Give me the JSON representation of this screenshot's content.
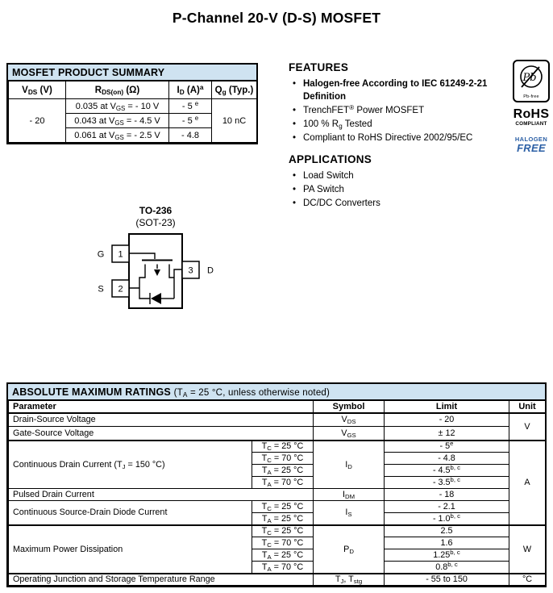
{
  "page_title": "P-Channel 20-V (D-S) MOSFET",
  "colors": {
    "table_header_blue": "#cfe3f1",
    "halogen_blue": "#2b5fa5"
  },
  "summary": {
    "title": "MOSFET PRODUCT SUMMARY",
    "col_headers": [
      "V<sub>DS</sub> (V)",
      "R<sub>DS(on)</sub> (Ω)",
      "I<sub>D</sub> (A)<sup>a</sup>",
      "Q<sub>g</sub> (Typ.)"
    ],
    "vds": "- 20",
    "rows": [
      {
        "rdson": "0.035 at V<sub>GS</sub> = - 10 V",
        "id": "- 5 <sup>e</sup>"
      },
      {
        "rdson": "0.043 at V<sub>GS</sub> = - 4.5 V",
        "id": "- 5 <sup>e</sup>"
      },
      {
        "rdson": "0.061 at V<sub>GS</sub> = - 2.5 V",
        "id": "- 4.8"
      }
    ],
    "qg": "10 nC"
  },
  "features": {
    "heading": "FEATURES",
    "items": [
      "<b>Halogen-free According to IEC 61249-2-21 Definition</b>",
      "TrenchFET<sup>®</sup> Power MOSFET",
      "100 % R<sub>g</sub> Tested",
      "Compliant to RoHS Directive 2002/95/EC"
    ]
  },
  "applications": {
    "heading": "APPLICATIONS",
    "items": [
      "Load Switch",
      "PA Switch",
      "DC/DC Converters"
    ]
  },
  "badges": {
    "pb": "Pb",
    "pb_free": "Pb-free",
    "rohs": "RoHS",
    "rohs_sub": "COMPLIANT",
    "halogen": "HALOGEN",
    "free": "FREE"
  },
  "package": {
    "name": "TO-236",
    "variant": "(SOT-23)",
    "pin1": "1",
    "pin2": "2",
    "pin3": "3",
    "gate": "G",
    "source": "S",
    "drain": "D"
  },
  "abs": {
    "title": "ABSOLUTE MAXIMUM RATINGS",
    "note": "(T<sub>A</sub> = 25 °C, unless otherwise noted)",
    "headers": {
      "parameter": "Parameter",
      "symbol": "Symbol",
      "limit": "Limit",
      "unit": "Unit"
    },
    "rows": [
      {
        "param": "Drain-Source Voltage",
        "sym": "V<sub>DS</sub>",
        "limit": "- 20",
        "unit": "V"
      },
      {
        "param": "Gate-Source Voltage",
        "sym": "V<sub>GS</sub>",
        "limit": "± 12"
      },
      {
        "param": "Continuous Drain Current (T<sub>J</sub> = 150 °C)",
        "cond": "T<sub>C</sub> = 25 °C",
        "sym": "I<sub>D</sub>",
        "limit": "- 5<sup>e</sup>",
        "unit": "A"
      },
      {
        "cond": "T<sub>C</sub> = 70 °C",
        "limit": "- 4.8"
      },
      {
        "cond": "T<sub>A</sub> = 25 °C",
        "limit": "- 4.5<sup>b, c</sup>"
      },
      {
        "cond": "T<sub>A</sub> = 70 °C",
        "limit": "- 3.5<sup>b, c</sup>"
      },
      {
        "param": "Pulsed Drain Current",
        "sym": "I<sub>DM</sub>",
        "limit": "- 18"
      },
      {
        "param": "Continuous Source-Drain Diode Current",
        "cond": "T<sub>C</sub> = 25 °C",
        "sym": "I<sub>S</sub>",
        "limit": "- 2.1"
      },
      {
        "cond": "T<sub>A</sub> = 25 °C",
        "limit": "- 1.0<sup>b, c</sup>"
      },
      {
        "param": "Maximum Power Dissipation",
        "cond": "T<sub>C</sub> = 25 °C",
        "sym": "P<sub>D</sub>",
        "limit": "2.5",
        "unit": "W"
      },
      {
        "cond": "T<sub>C</sub> = 70 °C",
        "limit": "1.6"
      },
      {
        "cond": "T<sub>A</sub> = 25 °C",
        "limit": "1.25<sup>b, c</sup>"
      },
      {
        "cond": "T<sub>A</sub> = 70 °C",
        "limit": "0.8<sup>b, c</sup>"
      },
      {
        "param": "Operating Junction and Storage Temperature Range",
        "sym": "T<sub>J</sub>, T<sub>stg</sub>",
        "limit": "- 55 to 150",
        "unit": "°C"
      }
    ]
  }
}
